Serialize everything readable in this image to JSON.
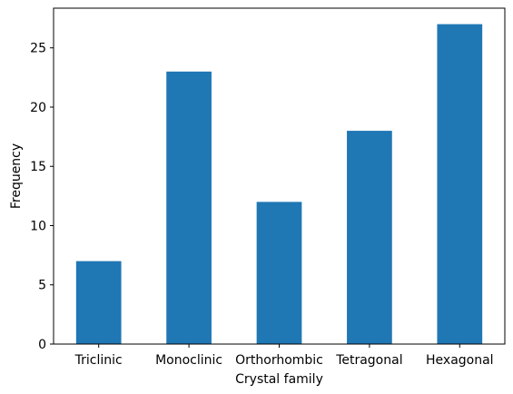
{
  "chart_data": {
    "type": "bar",
    "title": "",
    "xlabel": "Crystal family",
    "ylabel": "Frequency",
    "categories": [
      "Triclinic",
      "Monoclinic",
      "Orthorhombic",
      "Tetragonal",
      "Hexagonal"
    ],
    "values": [
      7,
      23,
      12,
      18,
      27
    ],
    "ylim": [
      0,
      28.35
    ],
    "yticks": [
      0,
      5,
      10,
      15,
      20,
      25
    ],
    "bar_color": "#1f77b4",
    "grid": false,
    "legend": "none"
  }
}
